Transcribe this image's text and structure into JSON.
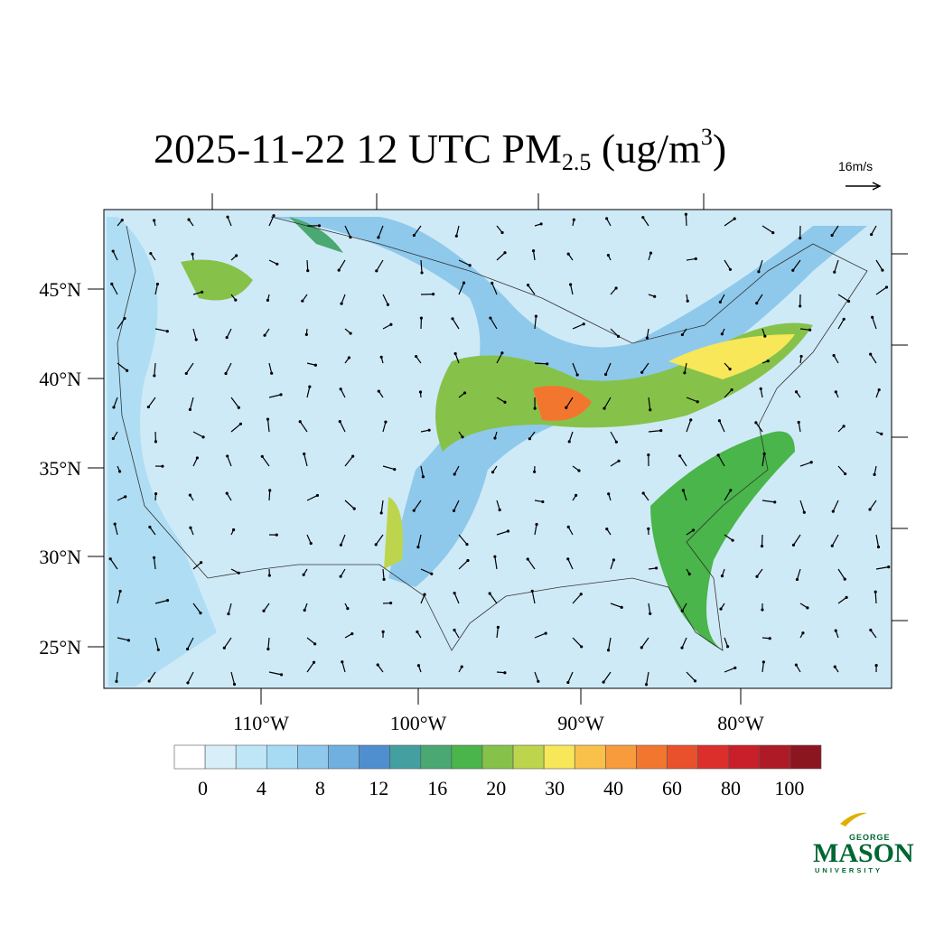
{
  "title": {
    "main": "2025-11-22 12 UTC PM",
    "sub": "2.5",
    "unit": " (ug/m",
    "sup": "3",
    "close": ")"
  },
  "vector_reference": "16m/s",
  "map": {
    "lat_labels": [
      "45°N",
      "40°N",
      "35°N",
      "30°N",
      "25°N"
    ],
    "lon_labels": [
      "110°W",
      "100°W",
      "90°W",
      "80°W"
    ]
  },
  "colorbar": {
    "colors": [
      "#ffffff",
      "#d8eff9",
      "#bfe6f7",
      "#a6dbf3",
      "#8ec9ec",
      "#6fb0e0",
      "#4f8fcf",
      "#44a0a0",
      "#4aa872",
      "#49b54a",
      "#86c24a",
      "#bcd54d",
      "#f7e759",
      "#f9c14a",
      "#f79b3c",
      "#f3762f",
      "#e9512d",
      "#dc2f2c",
      "#c81f2a",
      "#ae1a26",
      "#8c1620"
    ],
    "ticks": [
      0,
      4,
      8,
      12,
      16,
      20,
      30,
      40,
      60,
      80,
      100
    ]
  },
  "logo": {
    "top": "GEORGE",
    "name": "MASON",
    "bottom": "UNIVERSITY"
  }
}
